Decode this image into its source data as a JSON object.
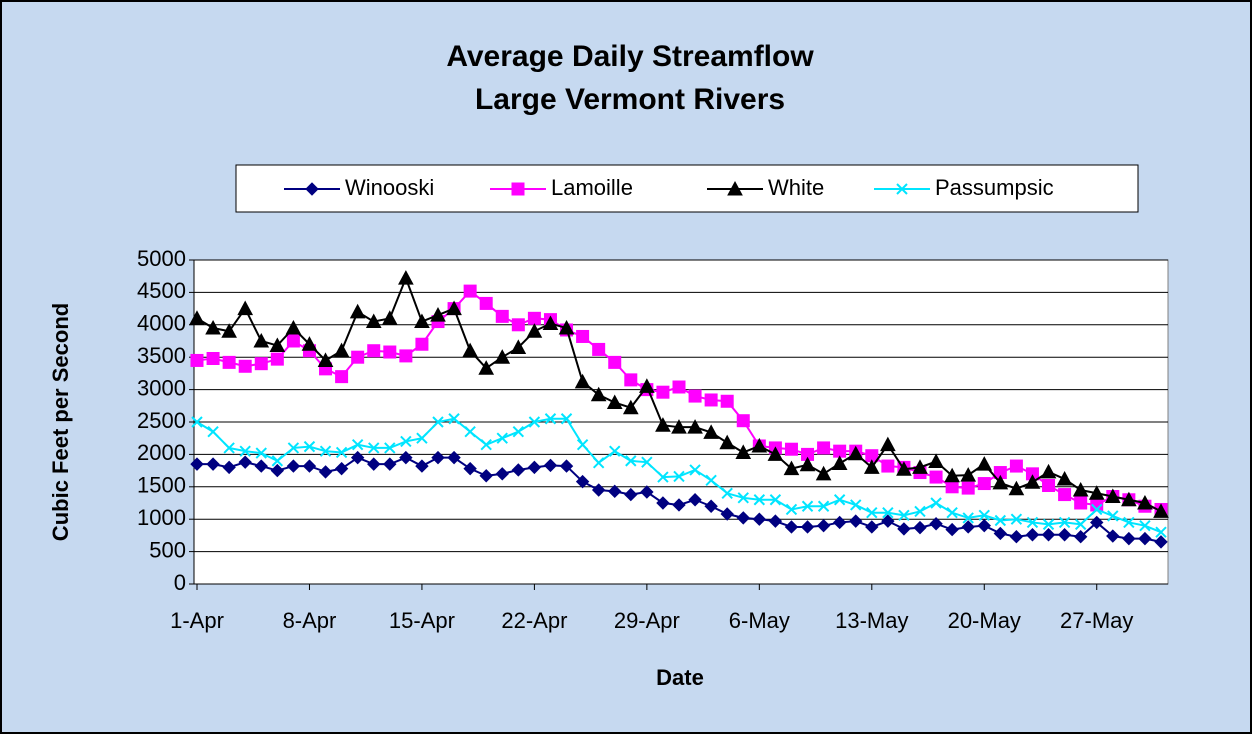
{
  "chart_data": {
    "type": "line",
    "title": "Average Daily Streamflow",
    "subtitle": "Large Vermont Rivers",
    "x_label": "Date",
    "y_label": "Cubic Feet per Second",
    "categories": [
      "1-Apr",
      null,
      null,
      null,
      null,
      null,
      null,
      "8-Apr",
      null,
      null,
      null,
      null,
      null,
      null,
      "15-Apr",
      null,
      null,
      null,
      null,
      null,
      null,
      "22-Apr",
      null,
      null,
      null,
      null,
      null,
      null,
      "29-Apr",
      null,
      null,
      null,
      null,
      null,
      null,
      "6-May",
      null,
      null,
      null,
      null,
      null,
      null,
      "13-May",
      null,
      null,
      null,
      null,
      null,
      null,
      "20-May",
      null,
      null,
      null,
      null,
      null,
      null,
      "27-May",
      null,
      null,
      null,
      null
    ],
    "series": [
      {
        "name": "Winooski",
        "color": "#000080",
        "marker": "diamond",
        "values": [
          1850,
          1850,
          1800,
          1880,
          1820,
          1750,
          1820,
          1820,
          1730,
          1780,
          1950,
          1850,
          1850,
          1950,
          1820,
          1950,
          1950,
          1780,
          1670,
          1700,
          1760,
          1800,
          1830,
          1820,
          1580,
          1450,
          1430,
          1380,
          1420,
          1250,
          1220,
          1300,
          1200,
          1080,
          1020,
          1000,
          970,
          880,
          880,
          900,
          950,
          970,
          880,
          970,
          850,
          870,
          930,
          840,
          880,
          900,
          780,
          730,
          760,
          760,
          760,
          730,
          950,
          740,
          700,
          700,
          650
        ]
      },
      {
        "name": "Lamoille",
        "color": "#ff00ff",
        "marker": "square",
        "values": [
          3450,
          3480,
          3420,
          3360,
          3400,
          3470,
          3750,
          3600,
          3320,
          3200,
          3500,
          3600,
          3580,
          3520,
          3700,
          4050,
          4250,
          4520,
          4330,
          4130,
          4000,
          4100,
          4080,
          3920,
          3820,
          3620,
          3420,
          3150,
          3000,
          2960,
          3040,
          2900,
          2840,
          2820,
          2520,
          2130,
          2100,
          2080,
          2000,
          2100,
          2050,
          2050,
          1980,
          1820,
          1800,
          1720,
          1650,
          1500,
          1480,
          1550,
          1720,
          1820,
          1700,
          1520,
          1380,
          1250,
          1220,
          1350,
          1300,
          1200,
          1150
        ]
      },
      {
        "name": "White",
        "color": "#000000",
        "marker": "triangle",
        "values": [
          4100,
          3950,
          3900,
          4250,
          3750,
          3680,
          3950,
          3700,
          3450,
          3600,
          4200,
          4050,
          4100,
          4720,
          4050,
          4150,
          4250,
          3600,
          3330,
          3500,
          3650,
          3900,
          4020,
          3950,
          3120,
          2920,
          2800,
          2720,
          3050,
          2450,
          2420,
          2420,
          2340,
          2180,
          2030,
          2130,
          2000,
          1780,
          1840,
          1700,
          1860,
          2010,
          1800,
          2150,
          1770,
          1800,
          1890,
          1670,
          1680,
          1850,
          1560,
          1470,
          1570,
          1730,
          1620,
          1450,
          1400,
          1350,
          1300,
          1250,
          1120
        ]
      },
      {
        "name": "Passumpsic",
        "color": "#00e5ff",
        "marker": "x",
        "values": [
          2500,
          2350,
          2100,
          2050,
          2020,
          1900,
          2100,
          2120,
          2050,
          2030,
          2150,
          2100,
          2100,
          2200,
          2250,
          2500,
          2550,
          2350,
          2150,
          2250,
          2350,
          2500,
          2550,
          2550,
          2150,
          1870,
          2050,
          1900,
          1880,
          1650,
          1660,
          1760,
          1600,
          1400,
          1330,
          1300,
          1300,
          1150,
          1200,
          1200,
          1300,
          1220,
          1100,
          1100,
          1060,
          1120,
          1250,
          1100,
          1020,
          1060,
          980,
          1000,
          950,
          920,
          950,
          920,
          1150,
          1050,
          950,
          900,
          800
        ]
      }
    ],
    "ylim": [
      0,
      5000
    ],
    "yticks": [
      0,
      500,
      1000,
      1500,
      2000,
      2500,
      3000,
      3500,
      4000,
      4500,
      5000
    ],
    "grid": true
  }
}
